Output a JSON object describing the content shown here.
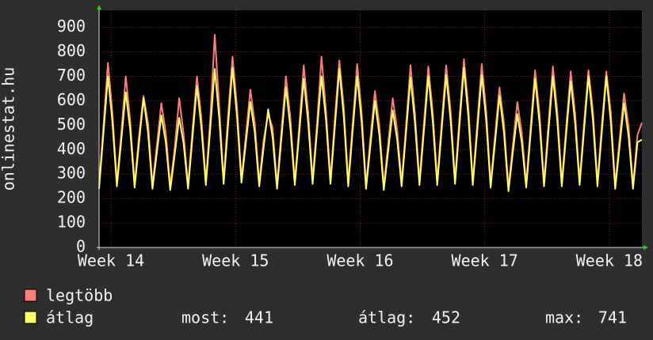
{
  "chart_data": {
    "type": "line",
    "y_label": "onlinestat.hu",
    "x": [
      0,
      0.25,
      0.5,
      0.75,
      1,
      1.25,
      1.5,
      1.75,
      2,
      2.25,
      2.5,
      2.75,
      3,
      3.25,
      3.5,
      3.75,
      4,
      4.25,
      4.5,
      4.75,
      5,
      5.25,
      5.5,
      5.75,
      6,
      6.25,
      6.5,
      6.75,
      7,
      7.25,
      7.5,
      7.75,
      8,
      8.25,
      8.5,
      8.75,
      9,
      9.25,
      9.5,
      9.75,
      10,
      10.25,
      10.5,
      10.75,
      11,
      11.25,
      11.5,
      11.75,
      12,
      12.25,
      12.5,
      12.75,
      13,
      13.25,
      13.5,
      13.75,
      14,
      14.25,
      14.5,
      14.75,
      15,
      15.25,
      15.5,
      15.75,
      16,
      16.25,
      16.5,
      16.75,
      17,
      17.25,
      17.5,
      17.75,
      18,
      18.25,
      18.5,
      18.75,
      19,
      19.25,
      19.5,
      19.75,
      20,
      20.25,
      20.5,
      20.75,
      21,
      21.25,
      21.5,
      21.75,
      22,
      22.25,
      22.5,
      22.75,
      23,
      23.25,
      23.5,
      23.75,
      24,
      24.25,
      24.5,
      24.75,
      25,
      25.25,
      25.5,
      25.75,
      26,
      26.25,
      26.5,
      26.75,
      27,
      27.25,
      27.5,
      27.75,
      28,
      28.25,
      28.5,
      28.75,
      29,
      29.25,
      29.5,
      29.75,
      30,
      30.25,
      30.5
    ],
    "series": [
      {
        "name": "legtöbb",
        "color": "#ff7c7c",
        "values": [
          255,
          500,
          755,
          555,
          265,
          470,
          700,
          520,
          260,
          460,
          620,
          510,
          255,
          420,
          590,
          470,
          250,
          410,
          610,
          465,
          255,
          480,
          700,
          530,
          270,
          530,
          870,
          580,
          275,
          540,
          780,
          575,
          280,
          460,
          645,
          510,
          265,
          440,
          545,
          490,
          255,
          480,
          700,
          530,
          270,
          500,
          745,
          550,
          275,
          510,
          780,
          560,
          275,
          530,
          765,
          575,
          265,
          505,
          750,
          555,
          255,
          450,
          640,
          500,
          250,
          430,
          610,
          480,
          265,
          500,
          745,
          550,
          270,
          505,
          740,
          555,
          270,
          510,
          745,
          560,
          275,
          530,
          770,
          575,
          270,
          510,
          750,
          560,
          260,
          460,
          655,
          510,
          245,
          420,
          595,
          470,
          260,
          495,
          725,
          545,
          265,
          505,
          740,
          555,
          265,
          495,
          720,
          545,
          270,
          510,
          725,
          560,
          265,
          505,
          720,
          555,
          255,
          445,
          630,
          495,
          255,
          460,
          510
        ]
      },
      {
        "name": "átlag",
        "color": "#ffff66",
        "values": [
          240,
          470,
          700,
          515,
          250,
          440,
          635,
          480,
          245,
          430,
          610,
          470,
          240,
          390,
          540,
          430,
          235,
          380,
          530,
          425,
          240,
          450,
          660,
          490,
          255,
          490,
          730,
          530,
          260,
          500,
          735,
          535,
          265,
          430,
          595,
          470,
          250,
          410,
          565,
          450,
          240,
          450,
          655,
          490,
          255,
          470,
          690,
          510,
          260,
          480,
          700,
          520,
          260,
          495,
          730,
          535,
          250,
          475,
          700,
          515,
          240,
          420,
          600,
          460,
          235,
          400,
          560,
          440,
          250,
          470,
          695,
          510,
          255,
          475,
          700,
          515,
          255,
          480,
          705,
          520,
          260,
          500,
          735,
          535,
          255,
          480,
          705,
          520,
          245,
          430,
          620,
          470,
          230,
          390,
          545,
          430,
          245,
          465,
          690,
          505,
          250,
          475,
          700,
          515,
          250,
          465,
          680,
          505,
          255,
          480,
          700,
          520,
          250,
          475,
          700,
          515,
          240,
          415,
          590,
          455,
          240,
          430,
          441
        ]
      }
    ],
    "stats": [
      {
        "label": "most:",
        "value": 441
      },
      {
        "label": "átlag:",
        "value": 452
      },
      {
        "label": "max:",
        "value": 741
      }
    ],
    "xlim": [
      0,
      30.5
    ],
    "xticks": [
      {
        "value": 0.67,
        "label": "Week 14"
      },
      {
        "value": 7.67,
        "label": "Week 15"
      },
      {
        "value": 14.67,
        "label": "Week 16"
      },
      {
        "value": 21.67,
        "label": "Week 17"
      },
      {
        "value": 28.67,
        "label": "Week 18"
      }
    ],
    "ylim": [
      0,
      970
    ],
    "yticks": [
      0,
      100,
      200,
      300,
      400,
      500,
      600,
      700,
      800,
      900
    ],
    "grid": true
  }
}
